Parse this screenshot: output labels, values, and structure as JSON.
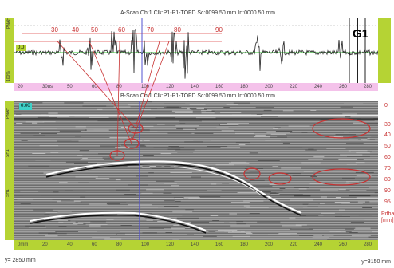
{
  "a_scan": {
    "title": "A-Scan Ch:1 Clk:P1-P1-TOFD Sc:0099.50 mm In:0000.50 mm",
    "left_top_label": "PNAH",
    "left_bottom_label": "100%",
    "badge": "0.0",
    "gate_label": "G1",
    "angle_labels": [
      "30",
      "40",
      "50",
      "60",
      "70",
      "80",
      "90"
    ],
    "axis_labels": [
      "20",
      "30us",
      "50",
      "60",
      "80",
      "100",
      "120",
      "140",
      "160",
      "180",
      "200",
      "220",
      "240",
      "260",
      "280"
    ]
  },
  "b_scan": {
    "title": "B-Scan Ch:1 Clk:P1-P1-TOFD Sc:0099.50 mm In:0000.50 mm",
    "badge": "0.00",
    "left_labels": [
      "PNAH",
      "SH1",
      "SH1"
    ],
    "depth_labels": [
      "0",
      "30",
      "40",
      "50",
      "60",
      "70",
      "80",
      "90",
      "95"
    ],
    "depth_unit": "Pdba\n[mm]",
    "axis_labels": [
      "0mm",
      "20",
      "40",
      "60",
      "80",
      "100",
      "120",
      "140",
      "160",
      "180",
      "200",
      "220",
      "240",
      "260",
      "280"
    ]
  },
  "status": {
    "y_left": "y= 2850 mm",
    "y_right": "y=3150 mm"
  },
  "colors": {
    "ruler_green": "#b5d334",
    "ruler_pink": "#f4c2ea",
    "annotation_red": "#c83232",
    "cursor_blue": "#5050d0",
    "badge_teal": "#3fd1c8"
  }
}
